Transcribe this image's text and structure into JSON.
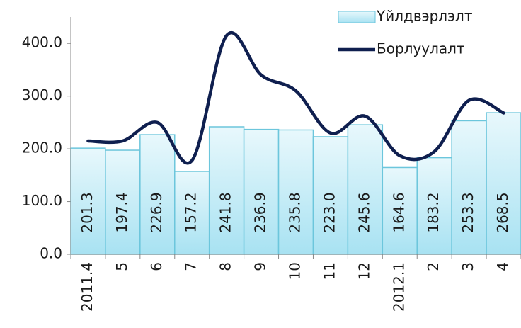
{
  "chart_data": {
    "type": "bar_line",
    "categories": [
      "2011.4",
      "5",
      "6",
      "7",
      "8",
      "9",
      "10",
      "11",
      "12",
      "2012.1",
      "2",
      "3",
      "4"
    ],
    "series": [
      {
        "name": "Үйлдвэрлэлт",
        "type": "bar",
        "color": "#c9eef8",
        "values": [
          201.3,
          197.4,
          226.9,
          157.2,
          241.8,
          236.9,
          235.8,
          223.0,
          245.6,
          164.6,
          183.2,
          253.3,
          268.5
        ],
        "value_labels": [
          "201.3",
          "197.4",
          "226.9",
          "157.2",
          "241.8",
          "236.9",
          "235.8",
          "223.0",
          "245.6",
          "164.6",
          "183.2",
          "253.3",
          "268.5"
        ]
      },
      {
        "name": "Борлуулалт",
        "type": "line",
        "color": "#0f1f4f",
        "values": [
          215,
          215,
          250,
          178,
          415,
          340,
          310,
          230,
          262,
          187,
          195,
          292,
          268
        ]
      }
    ],
    "ylim": [
      0,
      450
    ],
    "yticks": [
      {
        "value": 0,
        "label": "0.0"
      },
      {
        "value": 100,
        "label": "100.0"
      },
      {
        "value": 200,
        "label": "200.0"
      },
      {
        "value": 300,
        "label": "300.0"
      },
      {
        "value": 400,
        "label": "400.0"
      }
    ],
    "legend": "top-right"
  }
}
